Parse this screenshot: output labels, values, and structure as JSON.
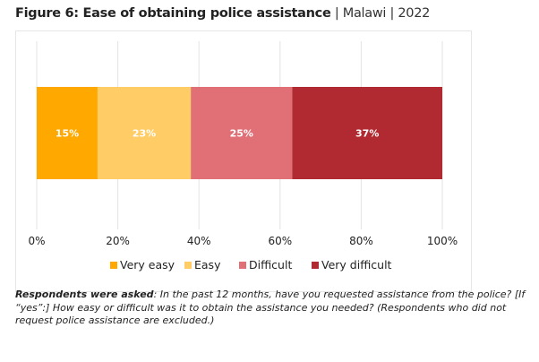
{
  "title": {
    "bold": "Figure 6: Ease of obtaining police assistance",
    "sep1": "|",
    "country": "Malawi",
    "sep2": "|",
    "year": "2022"
  },
  "chart_data": {
    "type": "bar",
    "orientation": "horizontal",
    "stacked": true,
    "categories": [
      ""
    ],
    "series": [
      {
        "name": "Very easy",
        "values": [
          15
        ],
        "label": "15%",
        "color": "#FFA800"
      },
      {
        "name": "Easy",
        "values": [
          23
        ],
        "label": "23%",
        "color": "#FFCC66"
      },
      {
        "name": "Difficult",
        "values": [
          25
        ],
        "label": "25%",
        "color": "#E07075"
      },
      {
        "name": "Very difficult",
        "values": [
          37
        ],
        "label": "37%",
        "color": "#B22A31"
      }
    ],
    "xlim": [
      0,
      100
    ],
    "xticks": [
      "0%",
      "20%",
      "40%",
      "60%",
      "80%",
      "100%"
    ],
    "grid": true,
    "legend": "bottom"
  },
  "caption": {
    "lead": "Respondents were asked",
    "text": ": In the past 12 months, have you requested assistance from the police? [If “yes”:] How easy or difficult was it to obtain the assistance you needed? (Respondents who did not request police assistance are excluded.)"
  }
}
